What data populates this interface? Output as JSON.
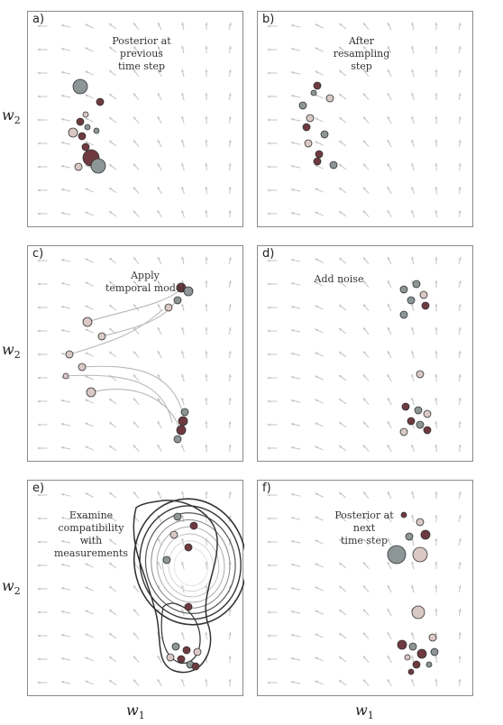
{
  "panels": [
    {
      "key": "a",
      "label": "a)",
      "caption": "Posterior at\nprevious\ntime step"
    },
    {
      "key": "b",
      "label": "b)",
      "caption": "After\nresampling\nstep"
    },
    {
      "key": "c",
      "label": "c)",
      "caption": "Apply\ntemporal model"
    },
    {
      "key": "d",
      "label": "d)",
      "caption": "Add noise"
    },
    {
      "key": "e",
      "label": "e)",
      "caption": "Examine\ncompatibility\nwith\nmeasurements"
    },
    {
      "key": "f",
      "label": "f)",
      "caption": "Posterior at\nnext\ntime step"
    }
  ],
  "axes": {
    "ylabel_var": "w",
    "ylabel_sub": "2",
    "xlabel_var": "w",
    "xlabel_sub": "1"
  },
  "colors": {
    "border": "#8a8a8a",
    "arrow": "#c4c4c4",
    "particle_dark": "#6e3a40",
    "particle_grey": "#8d9696",
    "particle_light": "#d9c8c4",
    "contour": "#333333"
  }
}
